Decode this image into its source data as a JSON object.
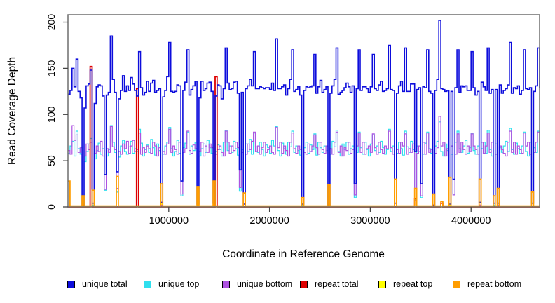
{
  "figure": {
    "background": "#ffffff",
    "box_color": "#6f6f6f",
    "tick_color": "#444444"
  },
  "chart_data": {
    "type": "line",
    "line_style": "step",
    "title": "",
    "xlabel": "Coordinate in Reference Genome",
    "ylabel": "Read Coverage Depth",
    "grid": false,
    "legend_position": "bottom",
    "x_start": 0,
    "x_step": 20000,
    "n_points": 235,
    "xlim": [
      0,
      4680000
    ],
    "ylim": [
      0,
      208
    ],
    "x_ticks": [
      1000000,
      2000000,
      3000000,
      4000000
    ],
    "x_tick_labels": [
      "1000000",
      "2000000",
      "3000000",
      "4000000"
    ],
    "y_ticks": [
      0,
      50,
      100,
      150,
      200
    ],
    "y_tick_labels": [
      "0",
      "50",
      "100",
      "150",
      "200"
    ],
    "draw_order": [
      1,
      2,
      4,
      3,
      0,
      5
    ],
    "series": [
      {
        "name": "unique total",
        "color": "#0d0ddc",
        "width": 1.6,
        "values": [
          122,
          126,
          150,
          130,
          160,
          125,
          118,
          2,
          107,
          131,
          133,
          148,
          4,
          112,
          130,
          132,
          131,
          120,
          35,
          121,
          124,
          185,
          138,
          124,
          38,
          117,
          126,
          142,
          125,
          131,
          126,
          140,
          133,
          126,
          120,
          168,
          129,
          121,
          124,
          136,
          125,
          134,
          137,
          124,
          126,
          128,
          5,
          119,
          126,
          141,
          178,
          125,
          124,
          125,
          132,
          131,
          28,
          126,
          135,
          170,
          121,
          127,
          131,
          136,
          3,
          118,
          136,
          126,
          128,
          134,
          135,
          125,
          4,
          120,
          132,
          131,
          117,
          128,
          172,
          134,
          127,
          128,
          135,
          136,
          123,
          40,
          124,
          3,
          128,
          131,
          138,
          131,
          168,
          128,
          128,
          130,
          129,
          128,
          129,
          129,
          127,
          134,
          126,
          182,
          128,
          128,
          130,
          132,
          121,
          128,
          138,
          170,
          125,
          127,
          130,
          121,
          3,
          126,
          130,
          129,
          130,
          131,
          165,
          123,
          130,
          137,
          124,
          127,
          130,
          2,
          123,
          131,
          138,
          172,
          122,
          124,
          126,
          129,
          134,
          130,
          124,
          131,
          25,
          128,
          170,
          126,
          130,
          130,
          128,
          124,
          130,
          165,
          128,
          126,
          132,
          136,
          125,
          126,
          128,
          175,
          127,
          126,
          4,
          123,
          131,
          136,
          125,
          172,
          125,
          125,
          133,
          133,
          60,
          127,
          129,
          25,
          130,
          129,
          170,
          125,
          123,
          2,
          126,
          138,
          202,
          128,
          127,
          125,
          126,
          3,
          125,
          30,
          129,
          170,
          124,
          131,
          130,
          131,
          126,
          126,
          168,
          129,
          121,
          125,
          5,
          135,
          130,
          126,
          172,
          123,
          127,
          4,
          127,
          4,
          132,
          123,
          126,
          128,
          132,
          178,
          123,
          129,
          128,
          131,
          122,
          126,
          170,
          128,
          127,
          129,
          4,
          125,
          131,
          172,
          129
        ]
      },
      {
        "name": "unique top",
        "color": "#2fdfee",
        "width": 1.2,
        "values": [
          58,
          66,
          71,
          55,
          82,
          63,
          57,
          1,
          49,
          60,
          68,
          74,
          2,
          52,
          61,
          69,
          57,
          63,
          18,
          55,
          62,
          88,
          70,
          59,
          16,
          54,
          66,
          72,
          60,
          57,
          65,
          71,
          58,
          63,
          60,
          84,
          69,
          55,
          62,
          67,
          59,
          73,
          64,
          56,
          68,
          61,
          1,
          57,
          66,
          70,
          86,
          63,
          55,
          60,
          72,
          58,
          12,
          64,
          69,
          81,
          57,
          66,
          61,
          70,
          0,
          55,
          63,
          68,
          59,
          72,
          64,
          58,
          2,
          60,
          67,
          62,
          55,
          70,
          83,
          61,
          66,
          59,
          71,
          63,
          56,
          17,
          62,
          1,
          68,
          60,
          73,
          57,
          80,
          65,
          59,
          70,
          62,
          55,
          67,
          64,
          58,
          72,
          66,
          87,
          61,
          55,
          69,
          63,
          57,
          70,
          65,
          82,
          59,
          66,
          61,
          56,
          2,
          64,
          70,
          58,
          67,
          62,
          79,
          56,
          70,
          64,
          59,
          66,
          61,
          0,
          57,
          71,
          65,
          83,
          60,
          55,
          68,
          62,
          70,
          57,
          63,
          66,
          10,
          59,
          81,
          64,
          57,
          70,
          62,
          55,
          68,
          78,
          61,
          66,
          59,
          71,
          64,
          57,
          62,
          84,
          60,
          66,
          1,
          58,
          70,
          63,
          56,
          82,
          65,
          59,
          71,
          62,
          8,
          66,
          60,
          10,
          57,
          69,
          81,
          63,
          58,
          0,
          66,
          71,
          92,
          60,
          55,
          68,
          61,
          2,
          57,
          14,
          70,
          82,
          63,
          59,
          66,
          72,
          58,
          64,
          80,
          61,
          57,
          66,
          1,
          63,
          70,
          58,
          83,
          62,
          55,
          2,
          68,
          0,
          64,
          59,
          66,
          71,
          60,
          85,
          62,
          57,
          69,
          63,
          58,
          66,
          81,
          60,
          55,
          70,
          1,
          64,
          59,
          82,
          67
        ]
      },
      {
        "name": "unique bottom",
        "color": "#ae52e2",
        "width": 1.2,
        "values": [
          61,
          57,
          88,
          72,
          78,
          59,
          64,
          0,
          55,
          68,
          62,
          70,
          1,
          58,
          66,
          60,
          71,
          55,
          19,
          63,
          59,
          87,
          65,
          62,
          20,
          60,
          57,
          68,
          63,
          71,
          58,
          66,
          72,
          60,
          62,
          80,
          57,
          64,
          59,
          66,
          63,
          58,
          70,
          66,
          55,
          64,
          2,
          60,
          57,
          68,
          84,
          59,
          66,
          62,
          57,
          70,
          14,
          59,
          63,
          82,
          61,
          58,
          67,
          63,
          2,
          60,
          70,
          55,
          66,
          59,
          68,
          64,
          0,
          57,
          62,
          66,
          59,
          55,
          82,
          70,
          58,
          66,
          61,
          70,
          64,
          21,
          59,
          1,
          57,
          68,
          62,
          71,
          81,
          60,
          66,
          57,
          64,
          70,
          59,
          62,
          66,
          59,
          57,
          86,
          64,
          70,
          58,
          66,
          61,
          55,
          70,
          80,
          63,
          58,
          66,
          62,
          0,
          59,
          57,
          68,
          60,
          66,
          78,
          64,
          57,
          70,
          62,
          58,
          66,
          2,
          63,
          57,
          70,
          81,
          59,
          66,
          55,
          64,
          61,
          70,
          58,
          62,
          13,
          66,
          80,
          59,
          70,
          57,
          63,
          66,
          59,
          79,
          64,
          57,
          70,
          62,
          58,
          66,
          63,
          82,
          64,
          57,
          1,
          62,
          58,
          70,
          66,
          79,
          57,
          63,
          59,
          68,
          7,
          58,
          66,
          12,
          70,
          57,
          80,
          59,
          62,
          2,
          58,
          64,
          98,
          66,
          70,
          55,
          63,
          0,
          66,
          13,
          57,
          79,
          59,
          70,
          62,
          57,
          66,
          60,
          79,
          66,
          62,
          57,
          2,
          70,
          58,
          66,
          80,
          59,
          70,
          0,
          57,
          2,
          66,
          62,
          58,
          55,
          70,
          82,
          59,
          70,
          57,
          66,
          62,
          58,
          80,
          66,
          70,
          57,
          1,
          59,
          70,
          81,
          60
        ]
      },
      {
        "name": "repeat total",
        "color": "#dd0000",
        "width": 1.8,
        "default": 0,
        "spikes": {
          "11": 152,
          "34": 128,
          "73": 141,
          "172": 9,
          "185": 4
        }
      },
      {
        "name": "repeat top",
        "color": "#ffff00",
        "width": 1.4,
        "default": 0,
        "spikes": {
          "46": 3,
          "189": 2
        }
      },
      {
        "name": "repeat bottom",
        "color": "#ff9d00",
        "width": 1.8,
        "default": 1,
        "spikes": {
          "0": 28,
          "7": 12,
          "12": 18,
          "24": 33,
          "46": 25,
          "64": 22,
          "72": 28,
          "87": 15,
          "116": 10,
          "129": 24,
          "162": 30,
          "172": 20,
          "181": 14,
          "185": 6,
          "189": 32,
          "204": 30,
          "211": 12,
          "213": 20,
          "230": 16
        }
      }
    ]
  }
}
